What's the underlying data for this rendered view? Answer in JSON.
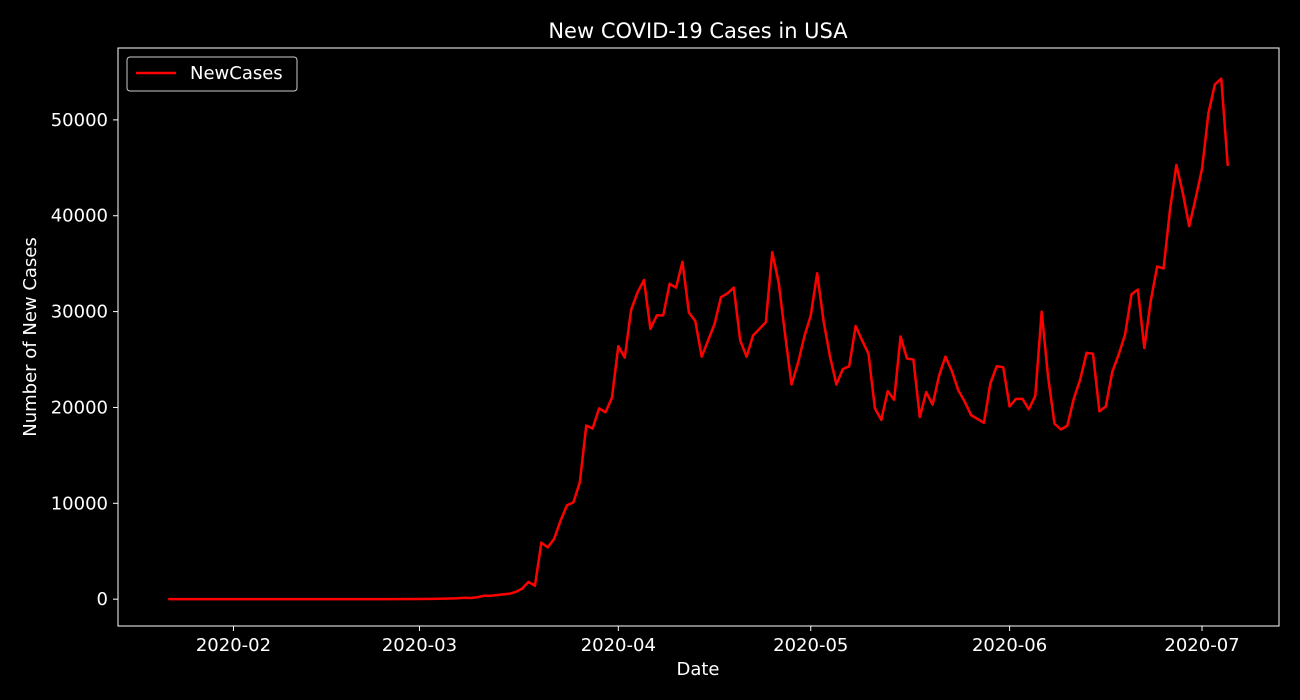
{
  "chart_data": {
    "type": "line",
    "title": "New COVID-19 Cases in USA",
    "xlabel": "Date",
    "ylabel": "Number of New Cases",
    "legend_placement": "top-left",
    "grid": false,
    "colors": {
      "background": "#000000",
      "foreground": "#ffffff",
      "series": "#ff0000"
    },
    "xlim": [
      "2020-01-14",
      "2020-07-13"
    ],
    "ylim": [
      -2800,
      57500
    ],
    "x_ticks": [
      {
        "date": "2020-02-01",
        "label": "2020-02"
      },
      {
        "date": "2020-03-01",
        "label": "2020-03"
      },
      {
        "date": "2020-04-01",
        "label": "2020-04"
      },
      {
        "date": "2020-05-01",
        "label": "2020-05"
      },
      {
        "date": "2020-06-01",
        "label": "2020-06"
      },
      {
        "date": "2020-07-01",
        "label": "2020-07"
      }
    ],
    "y_ticks": [
      {
        "value": 0,
        "label": "0"
      },
      {
        "value": 10000,
        "label": "10000"
      },
      {
        "value": 20000,
        "label": "20000"
      },
      {
        "value": 30000,
        "label": "30000"
      },
      {
        "value": 40000,
        "label": "40000"
      },
      {
        "value": 50000,
        "label": "50000"
      }
    ],
    "series": [
      {
        "name": "NewCases",
        "points": [
          [
            "2020-01-22",
            0
          ],
          [
            "2020-01-25",
            0
          ],
          [
            "2020-01-30",
            0
          ],
          [
            "2020-02-05",
            0
          ],
          [
            "2020-02-10",
            0
          ],
          [
            "2020-02-15",
            0
          ],
          [
            "2020-02-20",
            0
          ],
          [
            "2020-02-25",
            10
          ],
          [
            "2020-03-01",
            20
          ],
          [
            "2020-03-03",
            30
          ],
          [
            "2020-03-05",
            60
          ],
          [
            "2020-03-07",
            100
          ],
          [
            "2020-03-08",
            150
          ],
          [
            "2020-03-09",
            120
          ],
          [
            "2020-03-10",
            200
          ],
          [
            "2020-03-11",
            350
          ],
          [
            "2020-03-12",
            350
          ],
          [
            "2020-03-13",
            420
          ],
          [
            "2020-03-14",
            500
          ],
          [
            "2020-03-15",
            560
          ],
          [
            "2020-03-16",
            750
          ],
          [
            "2020-03-17",
            1100
          ],
          [
            "2020-03-18",
            1800
          ],
          [
            "2020-03-19",
            1400
          ],
          [
            "2020-03-20",
            5900
          ],
          [
            "2020-03-21",
            5400
          ],
          [
            "2020-03-22",
            6300
          ],
          [
            "2020-03-23",
            8200
          ],
          [
            "2020-03-24",
            9800
          ],
          [
            "2020-03-25",
            10100
          ],
          [
            "2020-03-26",
            12200
          ],
          [
            "2020-03-27",
            18100
          ],
          [
            "2020-03-28",
            17800
          ],
          [
            "2020-03-29",
            19900
          ],
          [
            "2020-03-30",
            19500
          ],
          [
            "2020-03-31",
            21000
          ],
          [
            "2020-04-01",
            26400
          ],
          [
            "2020-04-02",
            25200
          ],
          [
            "2020-04-03",
            30200
          ],
          [
            "2020-04-04",
            32000
          ],
          [
            "2020-04-05",
            33300
          ],
          [
            "2020-04-06",
            28200
          ],
          [
            "2020-04-07",
            29600
          ],
          [
            "2020-04-08",
            29600
          ],
          [
            "2020-04-09",
            32900
          ],
          [
            "2020-04-10",
            32500
          ],
          [
            "2020-04-11",
            35200
          ],
          [
            "2020-04-12",
            29900
          ],
          [
            "2020-04-13",
            29000
          ],
          [
            "2020-04-14",
            25300
          ],
          [
            "2020-04-15",
            27000
          ],
          [
            "2020-04-16",
            28700
          ],
          [
            "2020-04-17",
            31500
          ],
          [
            "2020-04-18",
            31900
          ],
          [
            "2020-04-19",
            32500
          ],
          [
            "2020-04-20",
            27000
          ],
          [
            "2020-04-21",
            25300
          ],
          [
            "2020-04-22",
            27500
          ],
          [
            "2020-04-23",
            28200
          ],
          [
            "2020-04-24",
            28900
          ],
          [
            "2020-04-25",
            36200
          ],
          [
            "2020-04-26",
            33000
          ],
          [
            "2020-04-27",
            27600
          ],
          [
            "2020-04-28",
            22400
          ],
          [
            "2020-04-29",
            24600
          ],
          [
            "2020-04-30",
            27400
          ],
          [
            "2020-05-01",
            29600
          ],
          [
            "2020-05-02",
            34000
          ],
          [
            "2020-05-03",
            29000
          ],
          [
            "2020-05-04",
            25300
          ],
          [
            "2020-05-05",
            22400
          ],
          [
            "2020-05-06",
            24000
          ],
          [
            "2020-05-07",
            24300
          ],
          [
            "2020-05-08",
            28500
          ],
          [
            "2020-05-09",
            27000
          ],
          [
            "2020-05-10",
            25600
          ],
          [
            "2020-05-11",
            19900
          ],
          [
            "2020-05-12",
            18700
          ],
          [
            "2020-05-13",
            21700
          ],
          [
            "2020-05-14",
            20800
          ],
          [
            "2020-05-15",
            27400
          ],
          [
            "2020-05-16",
            25100
          ],
          [
            "2020-05-17",
            25000
          ],
          [
            "2020-05-18",
            19000
          ],
          [
            "2020-05-19",
            21600
          ],
          [
            "2020-05-20",
            20300
          ],
          [
            "2020-05-21",
            23300
          ],
          [
            "2020-05-22",
            25300
          ],
          [
            "2020-05-23",
            23800
          ],
          [
            "2020-05-24",
            21800
          ],
          [
            "2020-05-25",
            20600
          ],
          [
            "2020-05-26",
            19200
          ],
          [
            "2020-05-27",
            18800
          ],
          [
            "2020-05-28",
            18400
          ],
          [
            "2020-05-29",
            22500
          ],
          [
            "2020-05-30",
            24300
          ],
          [
            "2020-05-31",
            24200
          ],
          [
            "2020-06-01",
            20100
          ],
          [
            "2020-06-02",
            20900
          ],
          [
            "2020-06-03",
            20900
          ],
          [
            "2020-06-04",
            19800
          ],
          [
            "2020-06-05",
            21200
          ],
          [
            "2020-06-06",
            30000
          ],
          [
            "2020-06-07",
            23200
          ],
          [
            "2020-06-08",
            18300
          ],
          [
            "2020-06-09",
            17700
          ],
          [
            "2020-06-10",
            18100
          ],
          [
            "2020-06-11",
            20900
          ],
          [
            "2020-06-12",
            22900
          ],
          [
            "2020-06-13",
            25700
          ],
          [
            "2020-06-14",
            25600
          ],
          [
            "2020-06-15",
            19600
          ],
          [
            "2020-06-16",
            20100
          ],
          [
            "2020-06-17",
            23700
          ],
          [
            "2020-06-18",
            25500
          ],
          [
            "2020-06-19",
            27600
          ],
          [
            "2020-06-20",
            31800
          ],
          [
            "2020-06-21",
            32300
          ],
          [
            "2020-06-22",
            26200
          ],
          [
            "2020-06-23",
            31100
          ],
          [
            "2020-06-24",
            34700
          ],
          [
            "2020-06-25",
            34500
          ],
          [
            "2020-06-26",
            40600
          ],
          [
            "2020-06-27",
            45300
          ],
          [
            "2020-06-28",
            42400
          ],
          [
            "2020-06-29",
            38900
          ],
          [
            "2020-06-30",
            41800
          ],
          [
            "2020-07-01",
            44900
          ],
          [
            "2020-07-02",
            50700
          ],
          [
            "2020-07-03",
            53700
          ],
          [
            "2020-07-04",
            54300
          ],
          [
            "2020-07-05",
            45300
          ]
        ]
      }
    ]
  }
}
